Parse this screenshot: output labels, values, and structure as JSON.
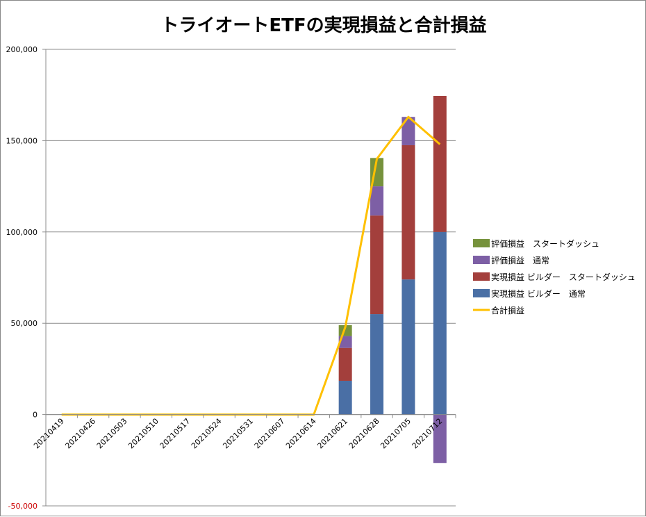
{
  "chart_data": {
    "type": "bar",
    "title": "トライオートETFの実現損益と合計損益",
    "categories": [
      "20210419",
      "20210426",
      "20210503",
      "20210510",
      "20210517",
      "20210524",
      "20210531",
      "20210607",
      "20210614",
      "20210621",
      "20210628",
      "20210705",
      "20210712"
    ],
    "ylim": [
      -50000,
      200000
    ],
    "yticks": [
      -50000,
      0,
      50000,
      100000,
      150000,
      200000
    ],
    "ytick_labels": [
      "-50,000",
      "0",
      "50,000",
      "100,000",
      "150,000",
      "200,000"
    ],
    "grid": true,
    "legend_position": "right",
    "series": [
      {
        "name": "実現損益 ビルダー　通常",
        "kind": "stacked-bar",
        "color": "#4A6FA5",
        "values": [
          0,
          0,
          0,
          0,
          0,
          0,
          0,
          0,
          0,
          18500,
          55000,
          74000,
          100000
        ]
      },
      {
        "name": "実現損益 ビルダー　スタートダッシュ",
        "kind": "stacked-bar",
        "color": "#A33F3C",
        "values": [
          0,
          0,
          0,
          0,
          0,
          0,
          0,
          0,
          0,
          18000,
          54000,
          73500,
          74500
        ]
      },
      {
        "name": "評価損益　通常",
        "kind": "stacked-bar",
        "color": "#7D5FA5",
        "values": [
          0,
          0,
          0,
          0,
          0,
          0,
          0,
          0,
          0,
          6500,
          16000,
          15500,
          -26500
        ]
      },
      {
        "name": "評価損益　スタートダッシュ",
        "kind": "stacked-bar",
        "color": "#76923C",
        "values": [
          0,
          0,
          0,
          0,
          0,
          0,
          0,
          0,
          0,
          6000,
          15500,
          0,
          0
        ]
      },
      {
        "name": "合計損益",
        "kind": "line",
        "color": "#FFC000",
        "values": [
          0,
          0,
          0,
          0,
          0,
          0,
          0,
          0,
          0,
          48000,
          140000,
          163000,
          148000
        ]
      }
    ],
    "legend_order": [
      3,
      2,
      1,
      0,
      4
    ]
  }
}
